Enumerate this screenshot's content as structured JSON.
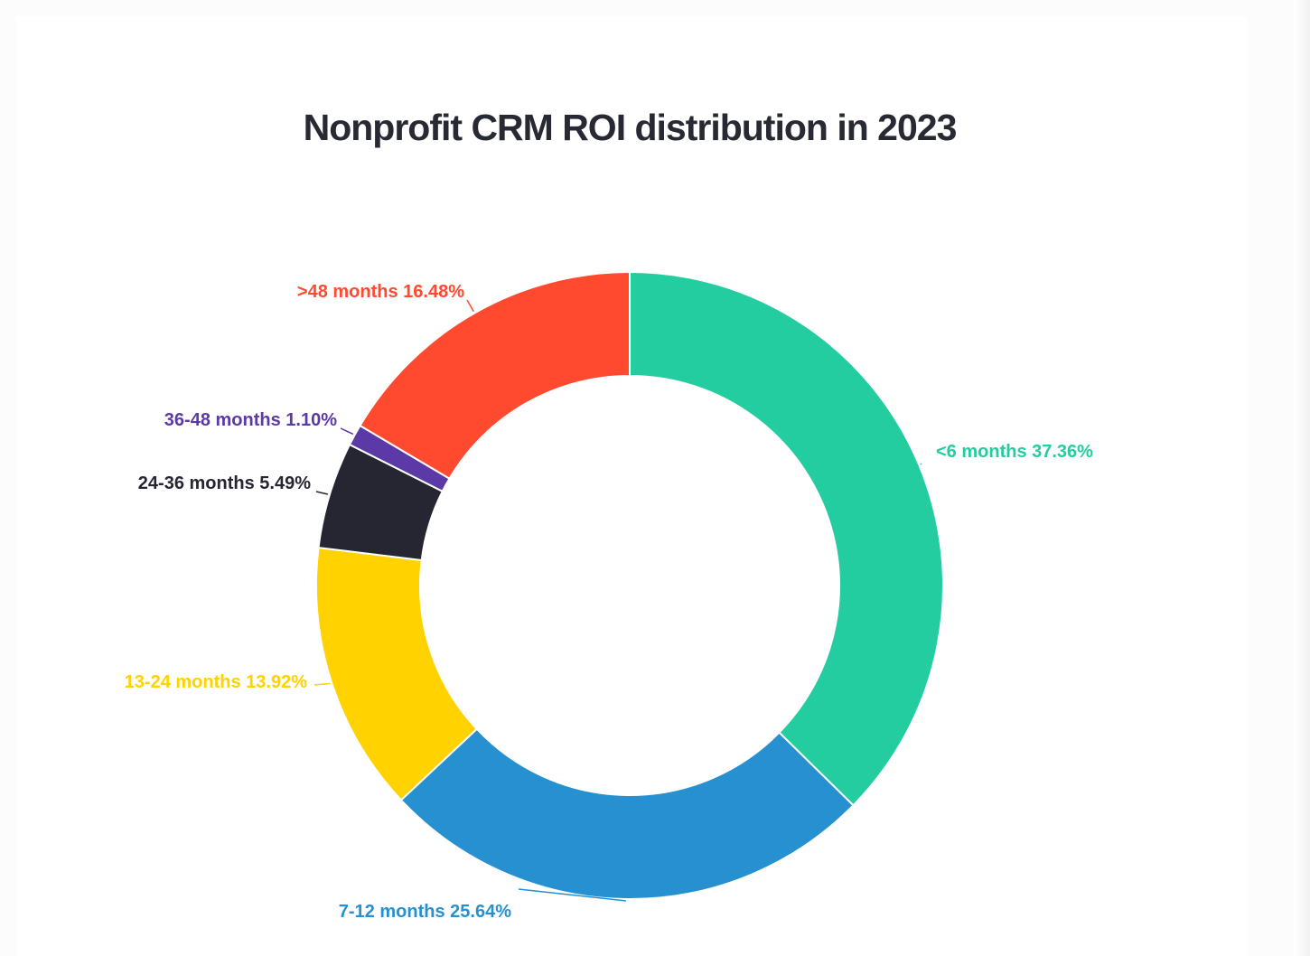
{
  "chart_data": {
    "type": "pie",
    "title": "Nonprofit CRM ROI distribution in 2023",
    "donut": true,
    "slices": [
      {
        "label": "<6 months",
        "value": 37.36,
        "display": "37.36%",
        "color": "#24cda0"
      },
      {
        "label": "7-12 months",
        "value": 25.64,
        "display": "25.64%",
        "color": "#2690d0"
      },
      {
        "label": "13-24 months",
        "value": 13.92,
        "display": "13.92%",
        "color": "#ffd200"
      },
      {
        "label": "24-36 months",
        "value": 5.49,
        "display": "5.49%",
        "color": "#252631"
      },
      {
        "label": "36-48 months",
        "value": 1.1,
        "display": "1.10%",
        "color": "#5b3aa8"
      },
      {
        "label": ">48 months",
        "value": 16.48,
        "display": "16.48%",
        "color": "#ff4a2f"
      }
    ]
  }
}
